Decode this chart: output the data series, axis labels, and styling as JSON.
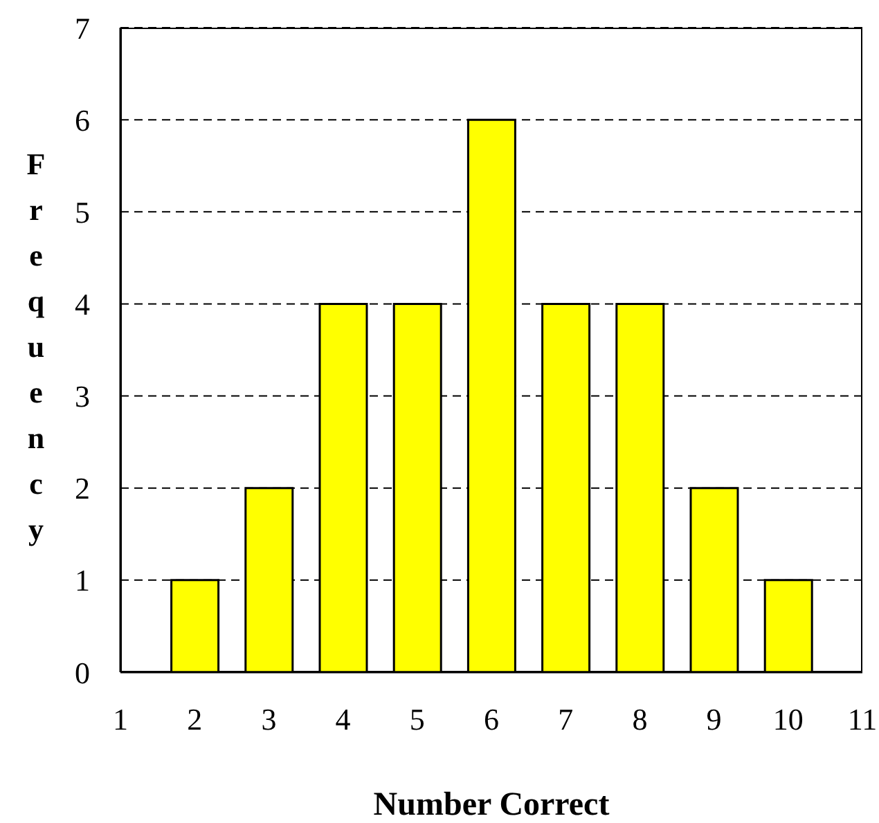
{
  "chart_data": {
    "type": "bar",
    "xlabel": "Number Correct",
    "ylabel": "Frequency",
    "x": [
      2,
      3,
      4,
      5,
      6,
      7,
      8,
      9,
      10
    ],
    "values": [
      1,
      2,
      4,
      4,
      6,
      4,
      4,
      2,
      1
    ],
    "color": "#ffff00",
    "xlim": [
      1,
      11
    ],
    "xticks": [
      1,
      2,
      3,
      4,
      5,
      6,
      7,
      8,
      9,
      10,
      11
    ],
    "ylim": [
      0,
      7
    ],
    "yticks": [
      0,
      1,
      2,
      3,
      4,
      5,
      6,
      7
    ],
    "grid": "y"
  }
}
